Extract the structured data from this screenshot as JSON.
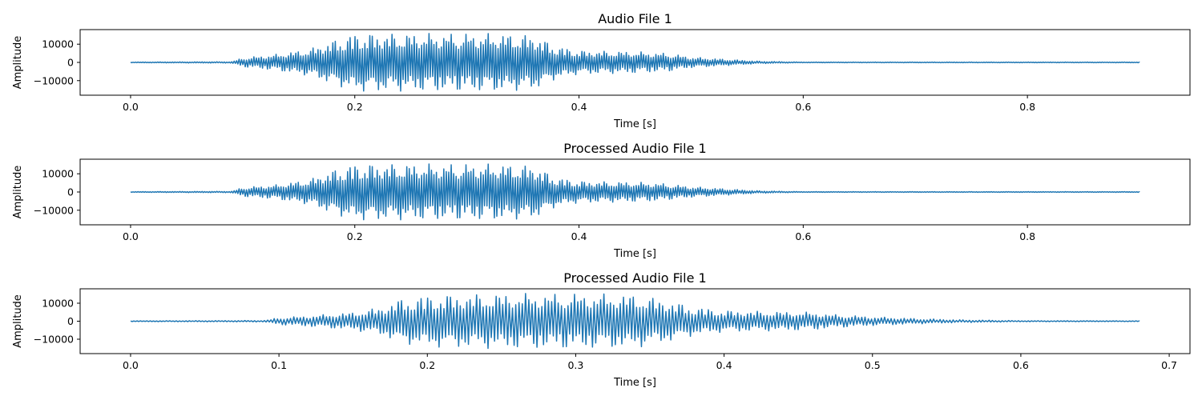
{
  "chart_data": [
    {
      "type": "line",
      "title": "Audio File 1",
      "xlabel": "Time [s]",
      "ylabel": "Amplitude",
      "xlim": [
        -0.045,
        0.945
      ],
      "ylim": [
        -18000,
        18000
      ],
      "xticks": [
        0.0,
        0.2,
        0.4,
        0.6,
        0.8
      ],
      "xtick_labels": [
        "0.0",
        "0.2",
        "0.4",
        "0.6",
        "0.8"
      ],
      "yticks": [
        10000,
        0,
        -10000
      ],
      "ytick_labels": [
        "10000",
        "0",
        "−10000"
      ],
      "grid": false,
      "series_color": "#1f77b4",
      "series": [
        {
          "duration": 0.9,
          "envelope": {
            "t": [
              0.0,
              0.09,
              0.1,
              0.13,
              0.16,
              0.18,
              0.2,
              0.25,
              0.3,
              0.33,
              0.36,
              0.38,
              0.4,
              0.45,
              0.48,
              0.5,
              0.53,
              0.56,
              0.6,
              0.9
            ],
            "amp": [
              200,
              400,
              2500,
              4500,
              7500,
              12000,
              16000,
              16000,
              16000,
              16000,
              15000,
              9000,
              6500,
              6000,
              5000,
              3000,
              1800,
              700,
              200,
              200
            ]
          }
        }
      ]
    },
    {
      "type": "line",
      "title": "Processed Audio File 1",
      "xlabel": "Time [s]",
      "ylabel": "Amplitude",
      "xlim": [
        -0.045,
        0.945
      ],
      "ylim": [
        -18000,
        18000
      ],
      "xticks": [
        0.0,
        0.2,
        0.4,
        0.6,
        0.8
      ],
      "xtick_labels": [
        "0.0",
        "0.2",
        "0.4",
        "0.6",
        "0.8"
      ],
      "yticks": [
        10000,
        0,
        -10000
      ],
      "ytick_labels": [
        "10000",
        "0",
        "−10000"
      ],
      "grid": false,
      "series_color": "#1f77b4",
      "series": [
        {
          "duration": 0.9,
          "envelope": {
            "t": [
              0.0,
              0.09,
              0.1,
              0.13,
              0.16,
              0.18,
              0.2,
              0.25,
              0.3,
              0.33,
              0.36,
              0.38,
              0.4,
              0.45,
              0.47,
              0.5,
              0.53,
              0.56,
              0.6,
              0.9
            ],
            "amp": [
              200,
              400,
              2500,
              4000,
              7000,
              12000,
              15500,
              15500,
              15500,
              15500,
              14500,
              8000,
              6000,
              5500,
              5000,
              3000,
              1800,
              700,
              200,
              200
            ]
          }
        }
      ]
    },
    {
      "type": "line",
      "title": "Processed Audio File 1",
      "xlabel": "Time [s]",
      "ylabel": "Amplitude",
      "xlim": [
        -0.034,
        0.714
      ],
      "ylim": [
        -18000,
        18000
      ],
      "xticks": [
        0.0,
        0.1,
        0.2,
        0.3,
        0.4,
        0.5,
        0.6,
        0.7
      ],
      "xtick_labels": [
        "0.0",
        "0.1",
        "0.2",
        "0.3",
        "0.4",
        "0.5",
        "0.6",
        "0.7"
      ],
      "yticks": [
        10000,
        0,
        -10000
      ],
      "ytick_labels": [
        "10000",
        "0",
        "−10000"
      ],
      "grid": false,
      "series_color": "#1f77b4",
      "series": [
        {
          "duration": 0.68,
          "envelope": {
            "t": [
              0.0,
              0.09,
              0.1,
              0.12,
              0.15,
              0.17,
              0.18,
              0.2,
              0.25,
              0.3,
              0.34,
              0.36,
              0.38,
              0.4,
              0.43,
              0.46,
              0.47,
              0.5,
              0.53,
              0.56,
              0.6,
              0.68
            ],
            "amp": [
              200,
              400,
              2000,
              3000,
              5000,
              8000,
              12000,
              14500,
              15500,
              15500,
              15000,
              12000,
              8000,
              6000,
              5500,
              5000,
              4000,
              2500,
              1500,
              800,
              300,
              200
            ]
          }
        }
      ]
    }
  ]
}
